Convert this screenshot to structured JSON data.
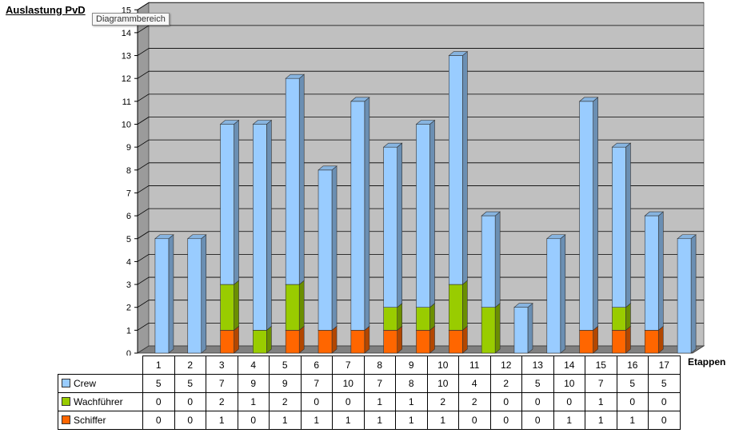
{
  "chart_data": {
    "type": "bar",
    "stacked": true,
    "title": "Auslastung PvD",
    "xlabel": "Etappen",
    "ylabel": "",
    "ylim": [
      0,
      15
    ],
    "yticks": [
      0,
      1,
      2,
      3,
      4,
      5,
      6,
      7,
      8,
      9,
      10,
      11,
      12,
      13,
      14,
      15
    ],
    "grid": true,
    "legend": "table-below",
    "categories": [
      "1",
      "2",
      "3",
      "4",
      "5",
      "6",
      "7",
      "8",
      "9",
      "10",
      "11",
      "12",
      "13",
      "14",
      "15",
      "16",
      "17"
    ],
    "series": [
      {
        "name": "Crew",
        "color": "#99ccff",
        "values": [
          5,
          5,
          7,
          9,
          9,
          7,
          10,
          7,
          8,
          10,
          4,
          2,
          5,
          10,
          7,
          5,
          5
        ]
      },
      {
        "name": "Wachführer",
        "color": "#99cc00",
        "values": [
          0,
          0,
          2,
          1,
          2,
          0,
          0,
          1,
          1,
          2,
          2,
          0,
          0,
          0,
          1,
          0,
          0
        ]
      },
      {
        "name": "Schiffer",
        "color": "#ff6600",
        "values": [
          0,
          0,
          1,
          0,
          1,
          1,
          1,
          1,
          1,
          1,
          0,
          0,
          0,
          1,
          1,
          1,
          0
        ]
      }
    ]
  },
  "ui": {
    "tooltip": "Diagrammbereich"
  },
  "colors": {
    "plot_back": "#c0c0c0",
    "plot_side": "#9b9b9b",
    "plot_floor": "#808080"
  }
}
